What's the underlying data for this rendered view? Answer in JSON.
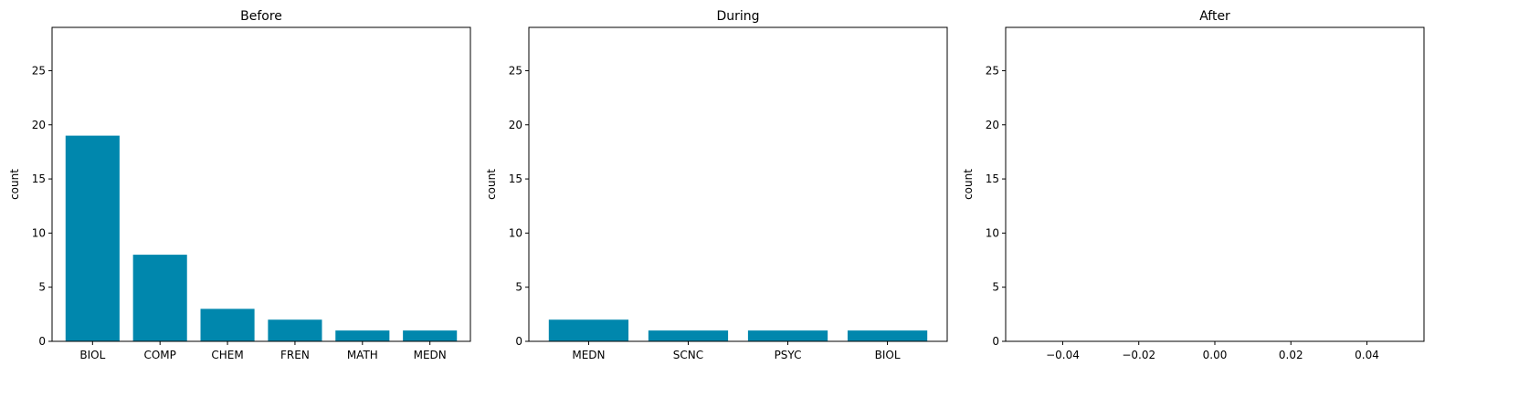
{
  "bar_color": "#0087ad",
  "chart_data": [
    {
      "type": "bar",
      "title": "Before",
      "ylabel": "count",
      "xlabel": "",
      "categories": [
        "BIOL",
        "COMP",
        "CHEM",
        "FREN",
        "MATH",
        "MEDN"
      ],
      "values": [
        19,
        8,
        3,
        2,
        1,
        1
      ],
      "ylim": [
        0,
        29
      ],
      "yticks": [
        0,
        5,
        10,
        15,
        20,
        25
      ],
      "grid": false
    },
    {
      "type": "bar",
      "title": "During",
      "ylabel": "count",
      "xlabel": "",
      "categories": [
        "MEDN",
        "SCNC",
        "PSYC",
        "BIOL"
      ],
      "values": [
        2,
        1,
        1,
        1
      ],
      "ylim": [
        0,
        29
      ],
      "yticks": [
        0,
        5,
        10,
        15,
        20,
        25
      ],
      "grid": false
    },
    {
      "type": "bar",
      "title": "After",
      "ylabel": "count",
      "xlabel": "",
      "categories": [],
      "values": [],
      "xlim": [
        -0.055,
        0.055
      ],
      "xticks": [
        "−0.04",
        "−0.02",
        "0.00",
        "0.02",
        "0.04"
      ],
      "xtick_values": [
        -0.04,
        -0.02,
        0.0,
        0.02,
        0.04
      ],
      "ylim": [
        0,
        29
      ],
      "yticks": [
        0,
        5,
        10,
        15,
        20,
        25
      ],
      "grid": false
    }
  ]
}
